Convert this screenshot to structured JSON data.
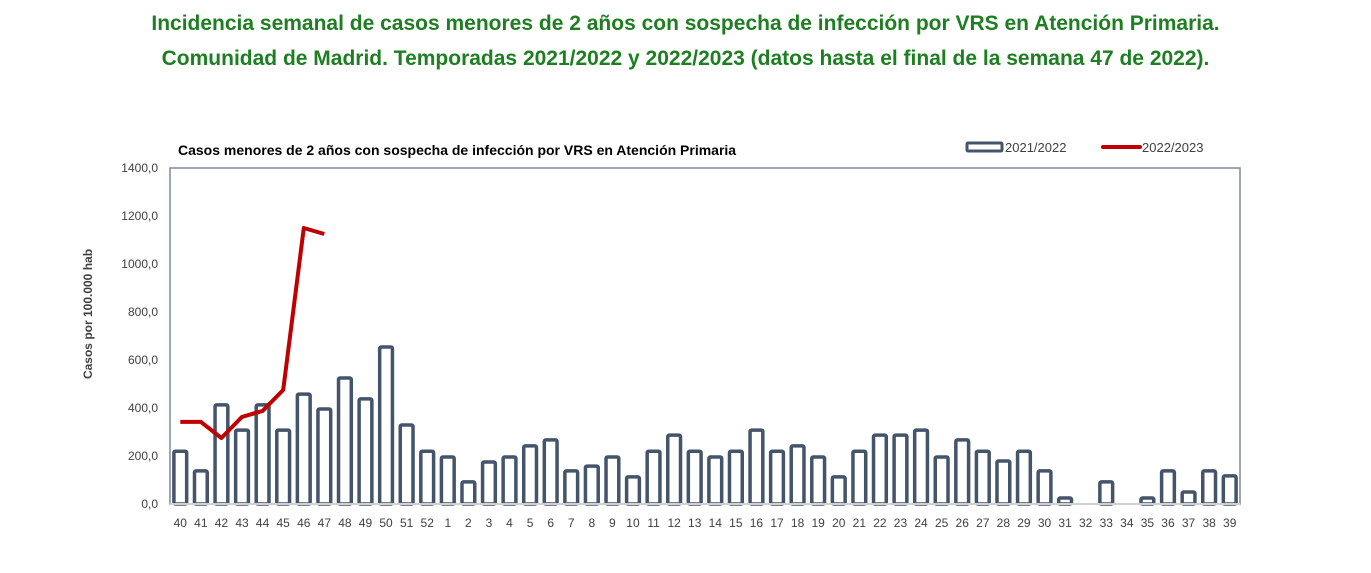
{
  "page": {
    "title_line1": "Incidencia semanal de casos menores de 2 años con sospecha de infección por VRS en Atención Primaria.",
    "title_line2": "Comunidad de Madrid. Temporadas 2021/2022 y 2022/2023 (datos hasta el final de la semana 47 de 2022)."
  },
  "colors": {
    "title_green": "#1E7E22",
    "bar_outline": "#44546A",
    "line_red": "#C00000",
    "axis": "#7F8A99"
  },
  "chart_data": {
    "type": "bar",
    "title": "Casos menores de 2 años con sospecha de infección por VRS en Atención Primaria",
    "xlabel": "",
    "ylabel": "Casos por 100.000 hab",
    "ylim": [
      0,
      1400
    ],
    "yticks": [
      "0,0",
      "200,0",
      "400,0",
      "600,0",
      "800,0",
      "1000,0",
      "1200,0",
      "1400,0"
    ],
    "grid": false,
    "legend_position": "top-right",
    "categories": [
      "40",
      "41",
      "42",
      "43",
      "44",
      "45",
      "46",
      "47",
      "48",
      "49",
      "50",
      "51",
      "52",
      "1",
      "2",
      "3",
      "4",
      "5",
      "6",
      "7",
      "8",
      "9",
      "10",
      "11",
      "12",
      "13",
      "14",
      "15",
      "16",
      "17",
      "18",
      "19",
      "20",
      "21",
      "22",
      "23",
      "24",
      "25",
      "26",
      "27",
      "28",
      "29",
      "30",
      "31",
      "32",
      "33",
      "34",
      "35",
      "36",
      "37",
      "38",
      "39"
    ],
    "series": [
      {
        "name": "2021/2022",
        "kind": "bar",
        "values": [
          220,
          138,
          413,
          308,
          413,
          308,
          458,
          396,
          525,
          438,
          654,
          329,
          220,
          196,
          92,
          175,
          196,
          242,
          267,
          138,
          158,
          196,
          113,
          220,
          287,
          220,
          196,
          220,
          308,
          220,
          242,
          196,
          113,
          220,
          287,
          287,
          308,
          196,
          267,
          220,
          179,
          220,
          138,
          25,
          0,
          92,
          0,
          25,
          138,
          50,
          138,
          117
        ]
      },
      {
        "name": "2022/2023",
        "kind": "line",
        "values": [
          342,
          342,
          275,
          363,
          388,
          475,
          1150,
          1125
        ]
      }
    ]
  }
}
